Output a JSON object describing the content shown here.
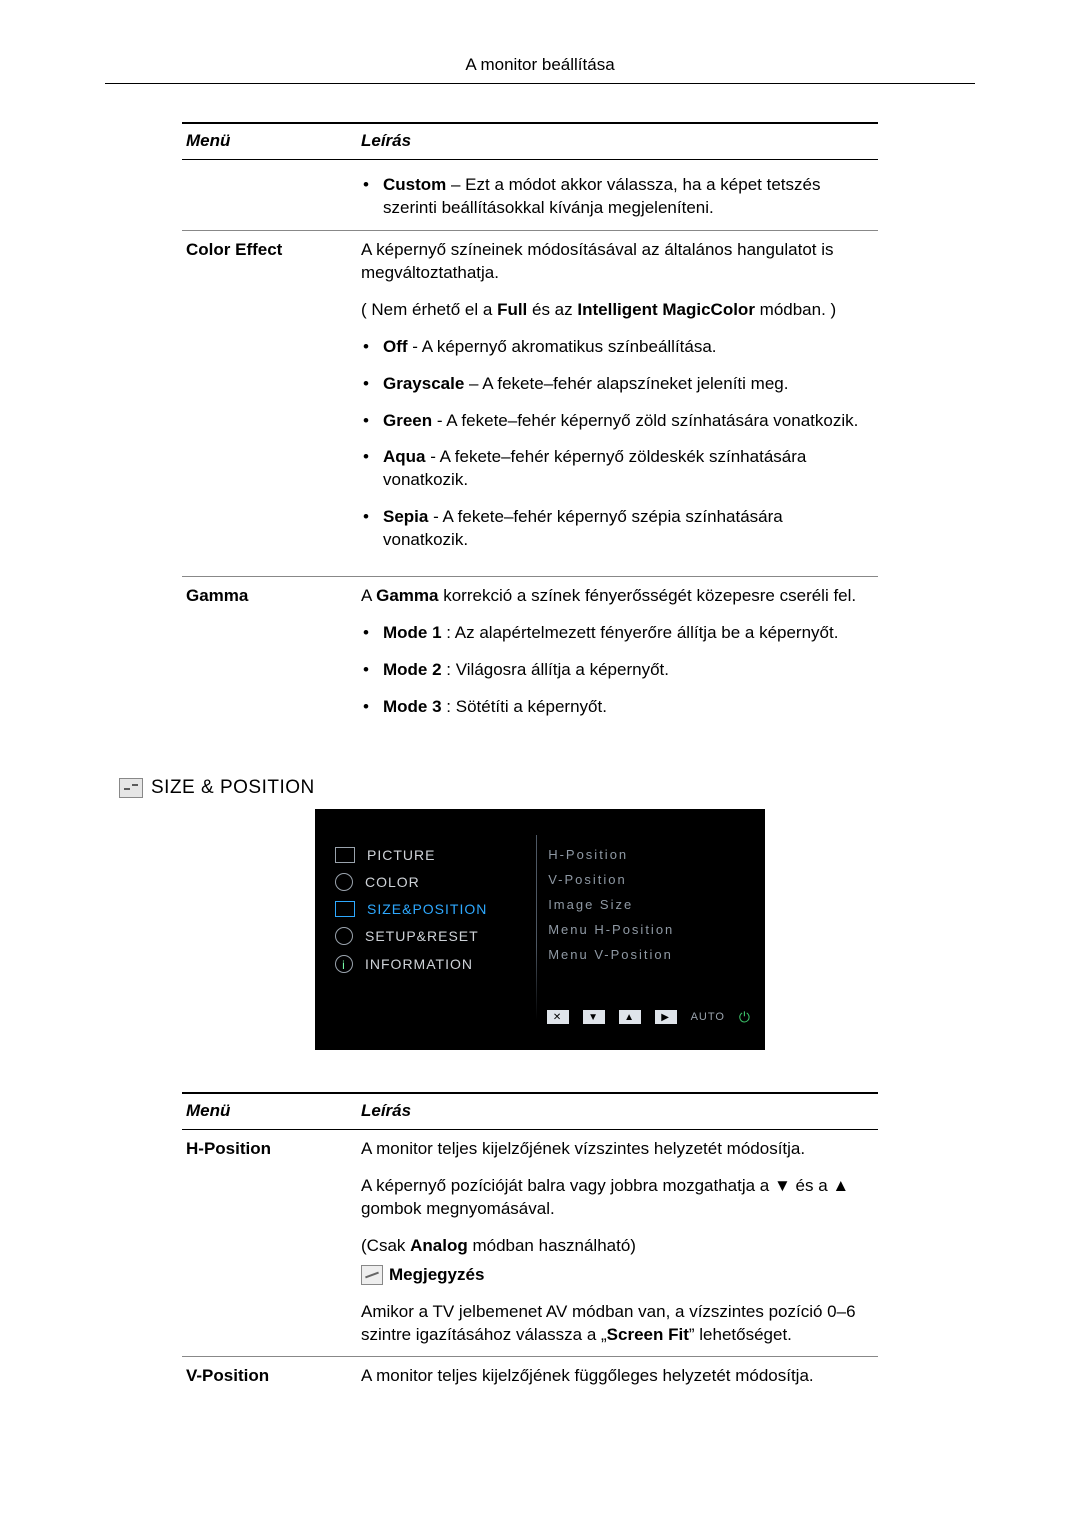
{
  "page_header": "A monitor beállítása",
  "table1": {
    "head_menu": "Menü",
    "head_desc": "Leírás",
    "row0": {
      "menu": "",
      "custom_b": "Custom",
      "custom_rest": " – Ezt a módot akkor válassza, ha a képet tetszés szerinti beállításokkal kívánja megjeleníteni."
    },
    "row1": {
      "menu": "Color Effect",
      "intro": "A képernyő színeinek módosításával az általános hangulatot is megváltoztathatja.",
      "note_pre": "( Nem érhető el a ",
      "note_b1": "Full",
      "note_mid": " és az ",
      "note_b2": "Intelligent MagicColor",
      "note_post": " módban. )",
      "off_b": "Off",
      "off_rest": " - A képernyő akromatikus színbeállítása.",
      "gray_b": "Grayscale",
      "gray_rest": " – A fekete–fehér alapszíneket jeleníti meg.",
      "green_b": "Green",
      "green_rest": " - A fekete–fehér képernyő zöld színhatására vonatkozik.",
      "aqua_b": "Aqua",
      "aqua_rest": " - A fekete–fehér képernyő zöldeskék színhatására vonatkozik.",
      "sepia_b": "Sepia",
      "sepia_rest": " - A fekete–fehér képernyő szépia színhatására vonatkozik."
    },
    "row2": {
      "menu": "Gamma",
      "pre1": "A ",
      "gamma_b": "Gamma",
      "post1": " korrekció a színek fényerősségét közepesre cseréli fel.",
      "m1_b": "Mode 1",
      "m1_rest": " : Az alapértelmezett fényerőre állítja be a képernyőt.",
      "m2_b": "Mode 2",
      "m2_rest": " : Világosra állítja a képernyőt.",
      "m3_b": "Mode 3",
      "m3_rest": " : Sötétíti a képernyőt."
    }
  },
  "section_title": "SIZE & POSITION",
  "osd": {
    "left": {
      "picture": "PICTURE",
      "color": "COLOR",
      "sizepos": "SIZE&POSITION",
      "setup": "SETUP&RESET",
      "info": "INFORMATION"
    },
    "right": {
      "hpos": "H-Position",
      "vpos": "V-Position",
      "imgsize": "Image Size",
      "mhpos": "Menu H-Position",
      "mvpos": "Menu V-Position"
    },
    "footer": {
      "close": "✕",
      "down": "▼",
      "up": "▲",
      "play": "▶",
      "auto": "AUTO",
      "pwr": "⏻"
    }
  },
  "table2": {
    "head_menu": "Menü",
    "head_desc": "Leírás",
    "r1": {
      "menu": "H-Position",
      "p1": "A monitor teljes kijelzőjének vízszintes helyzetét módosítja.",
      "p2": "A képernyő pozícióját balra vagy jobbra mozgathatja a ▼ és a ▲ gombok megnyomásával.",
      "p3_pre": "(Csak ",
      "p3_b": "Analog",
      "p3_post": " módban használható)",
      "note_label": "Megjegyzés",
      "p4_pre": "Amikor a TV jelbemenet AV módban van, a vízszintes pozíció 0–6 szintre igazításához válassza a „",
      "p4_b": "Screen Fit",
      "p4_post": "” lehetőséget."
    },
    "r2": {
      "menu": "V-Position",
      "p1": "A monitor teljes kijelzőjének függőleges helyzetét módosítja."
    }
  }
}
